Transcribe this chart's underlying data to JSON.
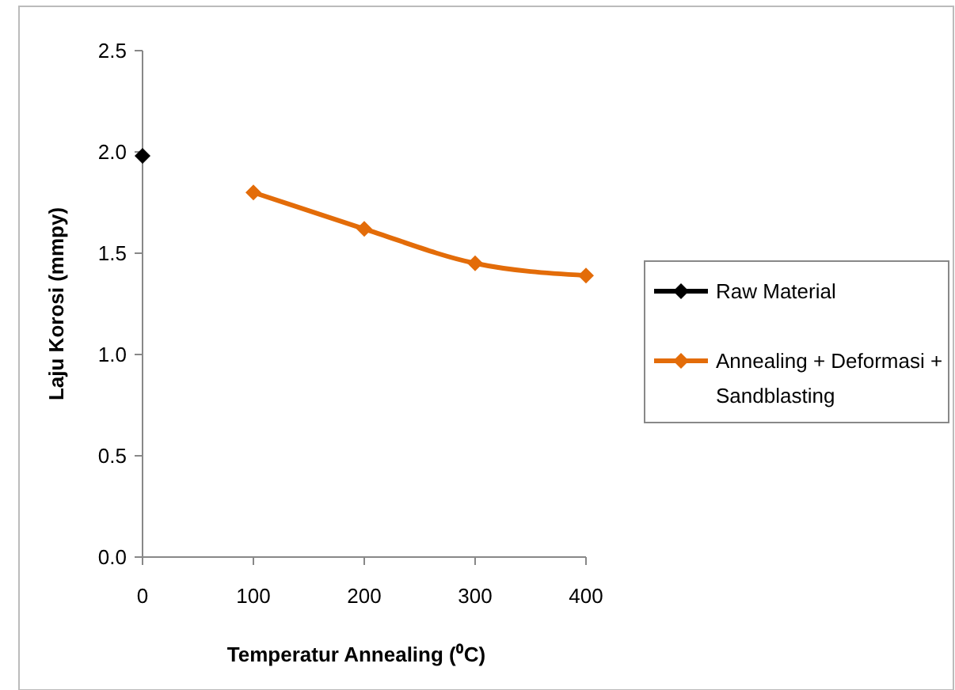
{
  "chart_data": {
    "type": "line",
    "xlabel": "Temperatur Annealing (⁰C)",
    "ylabel": "Laju Korosi (mmpy)",
    "xlim": [
      0,
      400
    ],
    "xticks": [
      0,
      100,
      200,
      300,
      400
    ],
    "ylim": [
      0,
      2.5
    ],
    "yticks": [
      {
        "value": 0,
        "label": "0.0"
      },
      {
        "value": 0.5,
        "label": "0.5"
      },
      {
        "value": 1,
        "label": "1.0"
      },
      {
        "value": 1.5,
        "label": "1.5"
      },
      {
        "value": 2,
        "label": "2.0"
      },
      {
        "value": 2.5,
        "label": "2.5"
      }
    ],
    "marker": "diamond",
    "line_style": "solid",
    "grid": false,
    "legend": "right",
    "series": [
      {
        "name": "Raw Material",
        "color": "#000000",
        "x": [
          0
        ],
        "values": [
          1.98
        ]
      },
      {
        "name": "Annealing + Deformasi + Sandblasting",
        "color": "#e36c09",
        "x": [
          100,
          200,
          300,
          400
        ],
        "values": [
          1.8,
          1.62,
          1.45,
          1.39
        ]
      }
    ]
  }
}
